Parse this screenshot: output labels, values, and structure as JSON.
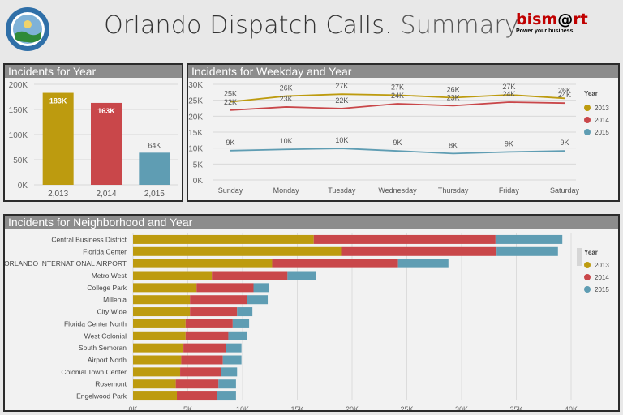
{
  "header": {
    "title_main": "Orlando Dispatch Calls.",
    "title_sub": "Summary",
    "brand_a": "bism",
    "brand_b": "@",
    "brand_c": "rt",
    "brand_tagline": "Power your business"
  },
  "colors": {
    "2013": "#bd9b0f",
    "2014": "#c9474a",
    "2015": "#5f9db3"
  },
  "panels": {
    "year": "Incidents for Year",
    "weekday": "Incidents for Weekday and Year",
    "neighborhood": "Incidents for Neighborhood and Year"
  },
  "chart_data": [
    {
      "type": "bar",
      "title": "Incidents for Year",
      "categories": [
        "2,013",
        "2,014",
        "2,015"
      ],
      "values": [
        183000,
        163000,
        64000
      ],
      "value_labels": [
        "183K",
        "163K",
        "64K"
      ],
      "yticks": [
        "0K",
        "50K",
        "100K",
        "150K",
        "200K"
      ],
      "ylim": [
        0,
        200000
      ]
    },
    {
      "type": "line",
      "title": "Incidents for Weekday and Year",
      "categories": [
        "Sunday",
        "Monday",
        "Tuesday",
        "Wednesday",
        "Thursday",
        "Friday",
        "Saturday"
      ],
      "yticks": [
        "0K",
        "5K",
        "10K",
        "15K",
        "20K",
        "25K",
        "30K"
      ],
      "ylim": [
        0,
        30000
      ],
      "legend_title": "Year",
      "series": [
        {
          "name": "2013",
          "values": [
            24500,
            26300,
            26900,
            26600,
            25800,
            26700,
            25600
          ],
          "labels": [
            "25K",
            "26K",
            "27K",
            "27K",
            "26K",
            "27K",
            "26K"
          ]
        },
        {
          "name": "2014",
          "values": [
            21900,
            22900,
            22400,
            23900,
            23300,
            24400,
            24100
          ],
          "labels": [
            "22K",
            "23K",
            "22K",
            "24K",
            "23K",
            "24K",
            "24K"
          ]
        },
        {
          "name": "2015",
          "values": [
            9200,
            9600,
            9900,
            9100,
            8300,
            8800,
            9100
          ],
          "labels": [
            "9K",
            "10K",
            "10K",
            "9K",
            "8K",
            "9K",
            "9K"
          ]
        }
      ]
    },
    {
      "type": "bar",
      "orientation": "horizontal",
      "stacked": true,
      "title": "Incidents for Neighborhood and Year",
      "categories": [
        "Central Business District",
        "Florida Center",
        "ORLANDO INTERNATIONAL AIRPORT",
        "Metro West",
        "College Park",
        "Millenia",
        "City Wide",
        "Florida Center North",
        "West Colonial",
        "South Semoran",
        "Airport North",
        "Colonial Town Center",
        "Rosemont",
        "Engelwood Park"
      ],
      "xticks": [
        "0K",
        "5K",
        "10K",
        "15K",
        "20K",
        "25K",
        "30K",
        "35K",
        "40K"
      ],
      "xlim": [
        0,
        40000
      ],
      "legend_title": "Year",
      "series": [
        {
          "name": "2013",
          "values": [
            16500,
            19000,
            12700,
            7200,
            5800,
            5200,
            5200,
            4800,
            4800,
            4600,
            4400,
            4300,
            3900,
            4000
          ]
        },
        {
          "name": "2014",
          "values": [
            16600,
            14200,
            11500,
            6900,
            5200,
            5200,
            4300,
            4300,
            3900,
            3900,
            3800,
            3700,
            3900,
            3700
          ]
        },
        {
          "name": "2015",
          "values": [
            6100,
            5600,
            4600,
            2600,
            1400,
            1900,
            1400,
            1500,
            1700,
            1400,
            1700,
            1500,
            1600,
            1700
          ]
        }
      ]
    }
  ]
}
